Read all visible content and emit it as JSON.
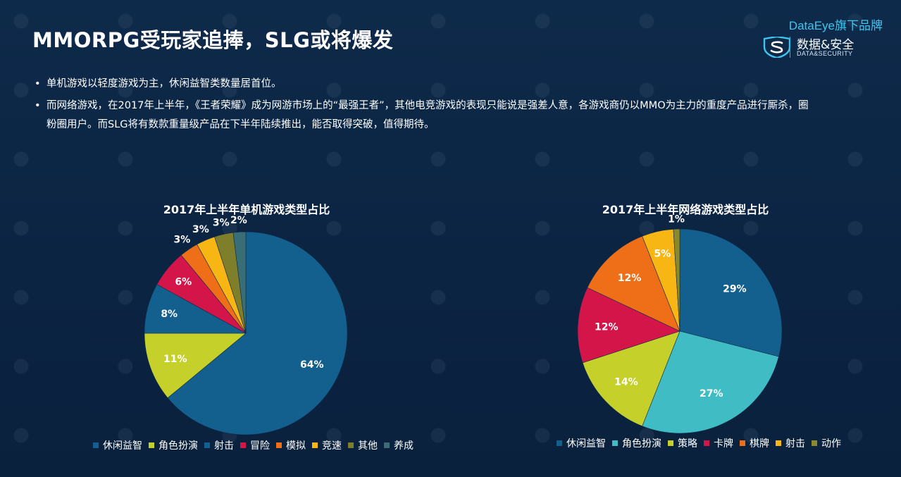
{
  "page": {
    "title": "MMORPG受玩家追捧，SLG或将爆发",
    "bullets": [
      "单机游戏以轻度游戏为主，休闲益智类数量居首位。",
      "而网络游戏，在2017年上半年，《王者荣耀》成为网游市场上的“最强王者”，其他电竞游戏的表现只能说是强差人意，各游戏商仍以MMO为主力的重度产品进行厮杀，圈粉圈用户。而SLG将有数款重量级产品在下半年陆续推出，能否取得突破，值得期待。"
    ]
  },
  "brand": {
    "top": "DataEye旗下品牌",
    "cn": "数据&安全",
    "en": "DATA&SECURITY",
    "logo_icon": "s-plus-shield-icon"
  },
  "chart_data": [
    {
      "type": "pie",
      "title": "2017年上半年单机游戏类型占比",
      "categories": [
        "休闲益智",
        "角色扮演",
        "射击",
        "冒险",
        "模拟",
        "竞速",
        "其他",
        "养成"
      ],
      "values": [
        64,
        11,
        8,
        6,
        3,
        3,
        3,
        2
      ],
      "labels": [
        "64%",
        "11%",
        "8%",
        "6%",
        "3%",
        "3%",
        "3%",
        "2%"
      ],
      "colors": [
        "#13608f",
        "#c5d12a",
        "#13608f",
        "#d3154a",
        "#ee6f18",
        "#f8b614",
        "#7f7e2a",
        "#3a6e76"
      ],
      "legend_colors": [
        "#13608f",
        "#c5d12a",
        "#13608f",
        "#d3154a",
        "#ee6f18",
        "#f8b614",
        "#7f7e2a",
        "#3a6e76"
      ],
      "legend": "bottom"
    },
    {
      "type": "pie",
      "title": "2017年上半年网络游戏类型占比",
      "categories": [
        "休闲益智",
        "角色扮演",
        "策略",
        "卡牌",
        "棋牌",
        "射击",
        "动作"
      ],
      "values": [
        29,
        27,
        14,
        12,
        12,
        5,
        1
      ],
      "labels": [
        "29%",
        "27%",
        "14%",
        "12%",
        "12%",
        "5%",
        "1%"
      ],
      "colors": [
        "#13608f",
        "#3fbcc4",
        "#c5d12a",
        "#d3154a",
        "#ee6f18",
        "#f8b614",
        "#8a8a2c"
      ],
      "legend_colors": [
        "#13608f",
        "#3fbcc4",
        "#c5d12a",
        "#d3154a",
        "#ee6f18",
        "#f8b614",
        "#8a8a2c"
      ],
      "legend": "bottom"
    }
  ]
}
